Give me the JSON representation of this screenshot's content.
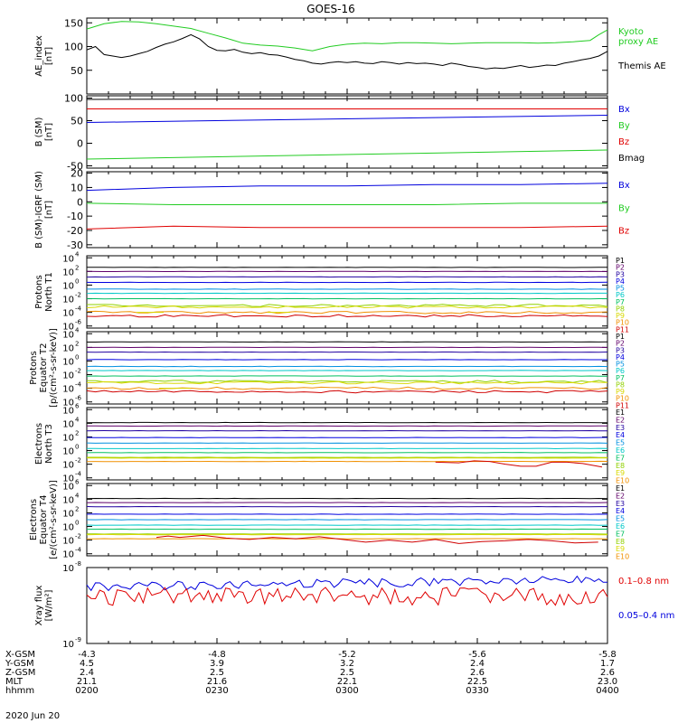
{
  "title": "GOES-16",
  "date": "2020 Jun 20",
  "colors": {
    "black": "#000000",
    "red": "#e00000",
    "green": "#22cc22",
    "blue": "#0000dd",
    "p": [
      "#000000",
      "#60006a",
      "#2000a0",
      "#0000e0",
      "#0090e0",
      "#00c8c8",
      "#00c060",
      "#90d000",
      "#d8d800",
      "#f09000",
      "#d00000"
    ],
    "e": [
      "#000000",
      "#60006a",
      "#2000a0",
      "#0000e0",
      "#0090e0",
      "#00c8c8",
      "#00c060",
      "#90d000",
      "#d8d800",
      "#f09000",
      "#d00000"
    ]
  },
  "ephemeris": {
    "labels": [
      "X-GSM",
      "Y-GSM",
      "Z-GSM",
      "MLT",
      "hhmm"
    ],
    "columns": [
      [
        "-4.3",
        "4.5",
        "2.4",
        "21.1",
        "0200"
      ],
      [
        "-4.8",
        "3.9",
        "2.5",
        "21.6",
        "0230"
      ],
      [
        "-5.2",
        "3.2",
        "2.5",
        "22.1",
        "0300"
      ],
      [
        "-5.6",
        "2.4",
        "2.6",
        "22.5",
        "0330"
      ],
      [
        "-5.8",
        "1.7",
        "2.6",
        "23.0",
        "0400"
      ]
    ]
  },
  "chart_data": [
    {
      "type": "line",
      "ylabel": "AE_index\n[nT]",
      "yticks": [
        "50",
        "100",
        "150"
      ],
      "ylim": [
        0,
        160
      ],
      "legend": [
        {
          "text": "Kyoto\nproxy AE",
          "color": "#22cc22"
        },
        {
          "text": "Themis AE",
          "color": "#000000"
        }
      ],
      "series": [
        {
          "name": "Kyoto proxy AE",
          "color": "#22cc22",
          "x": [
            0,
            4,
            8,
            12,
            16,
            20,
            24,
            28,
            32,
            36,
            40,
            44,
            48,
            52,
            56,
            60,
            64,
            68,
            72,
            76,
            80,
            84,
            88,
            92,
            96,
            100,
            104,
            108,
            112,
            116,
            118,
            120
          ],
          "values": [
            137,
            148,
            153,
            152,
            148,
            143,
            138,
            128,
            118,
            107,
            103,
            101,
            97,
            91,
            100,
            105,
            107,
            106,
            108,
            108,
            107,
            106,
            107,
            108,
            108,
            108,
            107,
            108,
            110,
            113,
            125,
            135
          ]
        },
        {
          "name": "Themis AE",
          "color": "#000000",
          "x": [
            0,
            2,
            4,
            6,
            8,
            10,
            12,
            14,
            16,
            18,
            20,
            22,
            24,
            26,
            28,
            30,
            32,
            34,
            36,
            38,
            40,
            42,
            44,
            46,
            48,
            50,
            52,
            54,
            56,
            58,
            60,
            62,
            64,
            66,
            68,
            70,
            72,
            74,
            76,
            78,
            80,
            82,
            84,
            86,
            88,
            90,
            92,
            94,
            96,
            98,
            100,
            102,
            104,
            106,
            108,
            110,
            112,
            114,
            116,
            118,
            120
          ],
          "values": [
            93,
            100,
            83,
            80,
            77,
            80,
            85,
            90,
            98,
            105,
            110,
            117,
            125,
            116,
            100,
            92,
            91,
            94,
            88,
            85,
            87,
            83,
            82,
            78,
            73,
            70,
            65,
            63,
            66,
            68,
            66,
            68,
            65,
            64,
            68,
            66,
            63,
            66,
            64,
            65,
            63,
            60,
            65,
            62,
            58,
            56,
            53,
            55,
            54,
            57,
            60,
            56,
            58,
            61,
            60,
            65,
            68,
            72,
            75,
            80,
            90
          ]
        }
      ]
    },
    {
      "type": "line",
      "ylabel": "B (SM)\n[nT]",
      "yticks": [
        "-50",
        "0",
        "50",
        "100"
      ],
      "ylim": [
        -55,
        105
      ],
      "legend": [
        {
          "text": "Bx",
          "color": "#0000dd"
        },
        {
          "text": "By",
          "color": "#22cc22"
        },
        {
          "text": "Bz",
          "color": "#e00000"
        },
        {
          "text": "Bmag",
          "color": "#000000"
        }
      ],
      "series": [
        {
          "name": "Bmag",
          "color": "#000000",
          "x": [
            0,
            120
          ],
          "values": [
            97,
            100
          ]
        },
        {
          "name": "Bz",
          "color": "#e00000",
          "x": [
            0,
            120
          ],
          "values": [
            76,
            76
          ]
        },
        {
          "name": "Bx",
          "color": "#0000dd",
          "x": [
            0,
            120
          ],
          "values": [
            46,
            62
          ]
        },
        {
          "name": "By",
          "color": "#22cc22",
          "x": [
            0,
            120
          ],
          "values": [
            -35,
            -15
          ]
        }
      ]
    },
    {
      "type": "line",
      "ylabel": "B (SM)-IGRF (SM)\n[nT]",
      "yticks": [
        "-30",
        "-20",
        "-10",
        "0",
        "10",
        "20"
      ],
      "ylim": [
        -32,
        21
      ],
      "legend": [
        {
          "text": "Bx",
          "color": "#0000dd"
        },
        {
          "text": "By",
          "color": "#22cc22"
        },
        {
          "text": "Bz",
          "color": "#e00000"
        }
      ],
      "series": [
        {
          "name": "Bx",
          "color": "#0000dd",
          "x": [
            0,
            20,
            40,
            60,
            80,
            100,
            120
          ],
          "values": [
            8,
            10,
            11,
            11,
            12,
            12,
            13
          ]
        },
        {
          "name": "By",
          "color": "#22cc22",
          "x": [
            0,
            20,
            40,
            60,
            80,
            100,
            120
          ],
          "values": [
            -1,
            -2,
            -2,
            -2,
            -2,
            -1,
            -1
          ]
        },
        {
          "name": "Bz",
          "color": "#e00000",
          "x": [
            0,
            20,
            40,
            60,
            80,
            100,
            120
          ],
          "values": [
            -19,
            -17,
            -18,
            -18,
            -18,
            -18,
            -17
          ]
        }
      ]
    },
    {
      "type": "line",
      "log": true,
      "ylabel": "Protons\nNorth T1",
      "ytickExp": [
        -6,
        -4,
        -2,
        0,
        2,
        4
      ],
      "ylim": [
        -6.3,
        4.3
      ],
      "legend": [
        "P1",
        "P2",
        "P3",
        "P4",
        "P5",
        "P6",
        "P7",
        "P8",
        "P9",
        "P10",
        "P11"
      ],
      "levels": [
        2.6,
        2.0,
        1.2,
        0.4,
        -0.6,
        -1.2,
        -2.0,
        -3.0,
        -3.2,
        -4.0,
        -4.5
      ],
      "dashes": [
        [
          55,
          85,
          -4.0
        ],
        [
          200,
          225,
          -4.0
        ]
      ]
    },
    {
      "type": "line",
      "log": true,
      "ylabel": "Protons\nEquator T2\n[p/(cm²-s-sr-keV)]",
      "ytickExp": [
        -6,
        -4,
        -2,
        0,
        2,
        4
      ],
      "ylim": [
        -6.3,
        4.3
      ],
      "legend": [
        "P1",
        "P2",
        "P3",
        "P4",
        "P5",
        "P6",
        "P7",
        "P8",
        "P9",
        "P10",
        "P11"
      ],
      "levels": [
        2.8,
        2.0,
        1.3,
        0.2,
        -0.8,
        -1.4,
        -2.2,
        -3.0,
        -3.2,
        -4.0,
        -4.5
      ],
      "dashes": [
        [
          80,
          115,
          -4.0
        ]
      ]
    },
    {
      "type": "line",
      "log": true,
      "ylabel": "Electrons\nNorth T3",
      "ytickExp": [
        -4,
        -2,
        0,
        2,
        4,
        6
      ],
      "ylim": [
        -4.3,
        6.3
      ],
      "legend": [
        "E1",
        "E2",
        "E3",
        "E4",
        "E5",
        "E6",
        "E7",
        "E8",
        "E9",
        "E10"
      ],
      "levels": [
        4.1,
        3.6,
        2.9,
        1.9,
        1.1,
        0.3,
        -0.3,
        -1.0,
        -1.1,
        -1.6
      ],
      "redtail": [
        [
          450,
          -1.7
        ],
        [
          480,
          -1.8
        ],
        [
          500,
          -1.5
        ],
        [
          520,
          -1.6
        ],
        [
          540,
          -2.0
        ],
        [
          560,
          -2.3
        ],
        [
          580,
          -2.3
        ],
        [
          600,
          -1.7
        ],
        [
          620,
          -1.7
        ],
        [
          640,
          -1.9
        ],
        [
          665,
          -2.4
        ]
      ]
    },
    {
      "type": "line",
      "log": true,
      "ylabel": "Electrons\nEquator T4\n[e/(cm²-s-sr-keV)]",
      "ytickExp": [
        -4,
        -2,
        0,
        2,
        4,
        6
      ],
      "ylim": [
        -4.3,
        6.3
      ],
      "legend": [
        "E1",
        "E2",
        "E3",
        "E4",
        "E5",
        "E6",
        "E7",
        "E8",
        "E9",
        "E10"
      ],
      "levels": [
        4.1,
        3.5,
        2.9,
        1.8,
        1.0,
        0.2,
        -0.4,
        -1.1,
        -1.2,
        -1.8
      ],
      "redtail": [
        [
          90,
          -1.6
        ],
        [
          105,
          -1.4
        ],
        [
          120,
          -1.6
        ],
        [
          150,
          -1.3
        ],
        [
          180,
          -1.7
        ],
        [
          210,
          -1.9
        ],
        [
          240,
          -1.6
        ],
        [
          270,
          -1.8
        ],
        [
          300,
          -1.5
        ],
        [
          330,
          -1.9
        ],
        [
          360,
          -2.3
        ],
        [
          390,
          -2.0
        ],
        [
          420,
          -2.3
        ],
        [
          450,
          -1.9
        ],
        [
          480,
          -2.5
        ],
        [
          510,
          -2.2
        ],
        [
          540,
          -2.1
        ],
        [
          570,
          -1.9
        ],
        [
          600,
          -2.1
        ],
        [
          630,
          -2.4
        ],
        [
          660,
          -2.3
        ]
      ]
    },
    {
      "type": "line",
      "log": true,
      "ylabel": "Xray flux\n[W/m²]",
      "ytickExp": [
        -9,
        -8
      ],
      "ylim": [
        -9,
        -8
      ],
      "legend": [
        {
          "text": "0.1–0.8 nm",
          "color": "#e00000"
        },
        {
          "text": "0.05–0.4 nm",
          "color": "#0000dd"
        }
      ]
    }
  ]
}
